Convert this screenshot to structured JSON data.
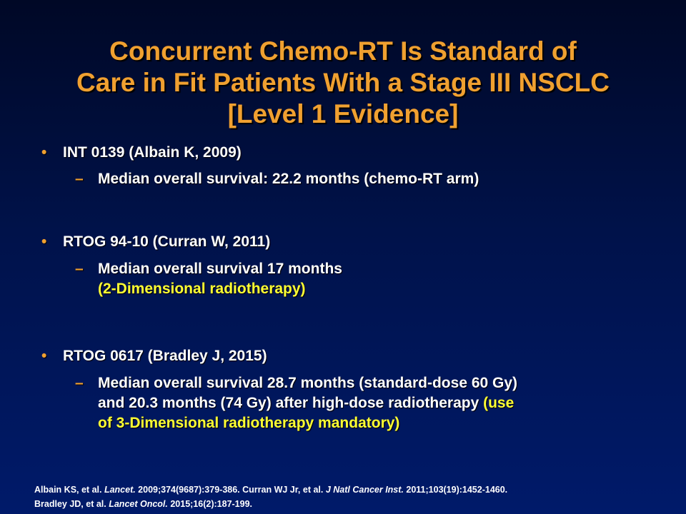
{
  "title": {
    "line1": "Concurrent Chemo-RT Is Standard of",
    "line2": "Care in Fit Patients With a Stage III NSCLC",
    "line3": "[Level 1 Evidence]"
  },
  "bullets": [
    {
      "marker": "•",
      "text": "INT 0139 (Albain K, 2009)",
      "sub": {
        "marker": "–",
        "line1": "Median overall survival: 22.2 months (chemo-RT arm)"
      }
    },
    {
      "marker": "•",
      "text": "RTOG 94-10 (Curran W, 2011)",
      "sub": {
        "marker": "–",
        "line1": "Median overall survival 17 months",
        "line2_highlight": "(2-Dimensional radiotherapy)"
      }
    },
    {
      "marker": "•",
      "text": "RTOG 0617 (Bradley J, 2015)",
      "sub": {
        "marker": "–",
        "line1": "Median overall survival 28.7 months (standard-dose 60 Gy)",
        "line2": "and 20.3 months (74 Gy) after high-dose radiotherapy ",
        "line2_highlight": "(use",
        "line3_highlight": "of 3-Dimensional radiotherapy mandatory)"
      }
    }
  ],
  "references": {
    "line1_a": "Albain KS, et al. ",
    "line1_journal1": "Lancet.",
    "line1_b": " 2009;374(9687):379-386. Curran WJ Jr, et al. ",
    "line1_journal2": "J Natl Cancer Inst.",
    "line1_c": " 2011;103(19):1452-1460.",
    "line2_a": "Bradley JD, et al. ",
    "line2_journal": "Lancet Oncol.",
    "line2_b": "  2015;16(2):187-199."
  },
  "colors": {
    "title": "#f0a030",
    "highlight": "#ffff33",
    "background_top": "#000826",
    "background_bottom": "#001a6a"
  }
}
